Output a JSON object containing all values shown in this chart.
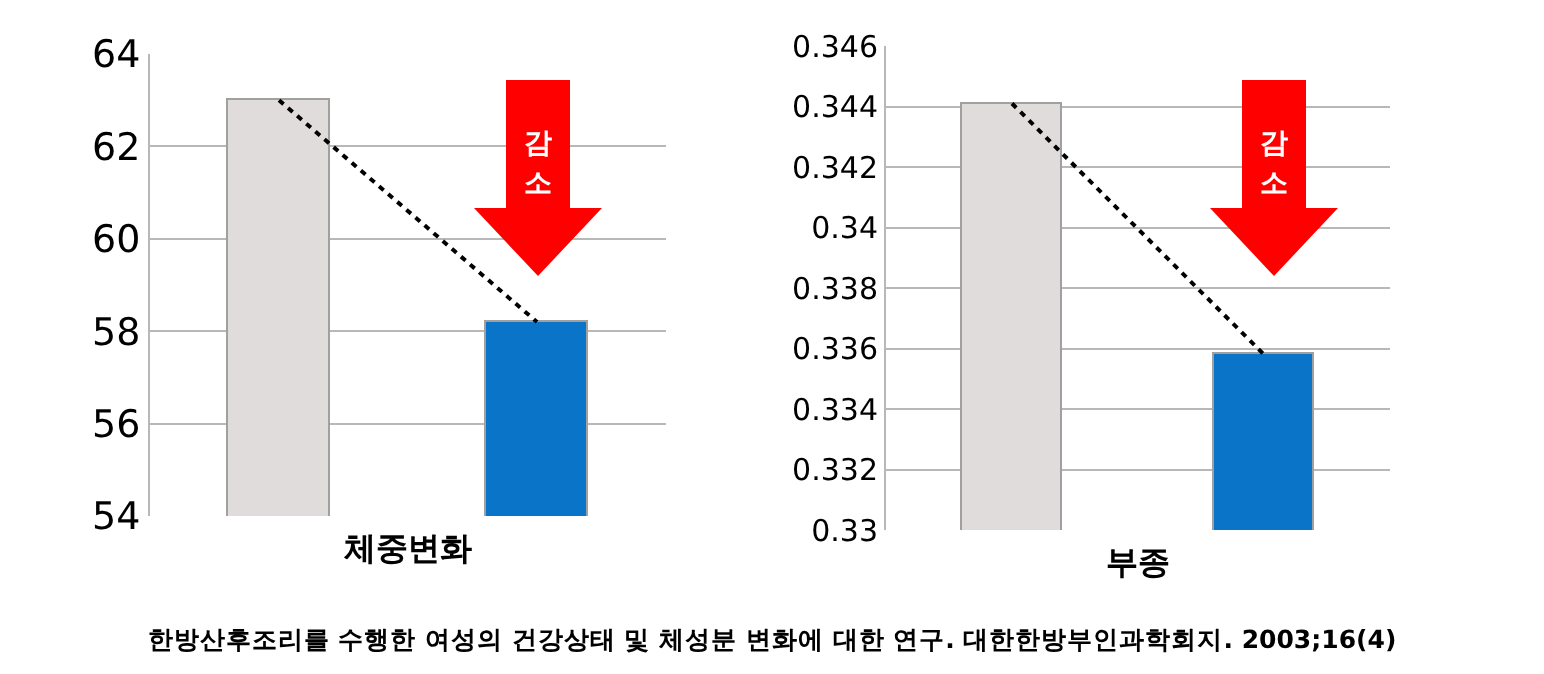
{
  "chart_data": [
    {
      "type": "bar",
      "xlabel": "체중변화",
      "categories": [
        null,
        null
      ],
      "series": [
        {
          "colors": [
            "#e0dcdc",
            "#0a74c8"
          ],
          "values": [
            63,
            58.2
          ]
        },
        {
          "type": "line",
          "color": "#000000",
          "line_style": "dotted",
          "values": [
            63,
            58.2
          ]
        }
      ],
      "ylim": [
        54,
        64
      ],
      "yticks": [
        54,
        56,
        58,
        60,
        62,
        64
      ],
      "grid": "y",
      "tick_labels": "y",
      "annotations": [
        "감소"
      ]
    },
    {
      "type": "bar",
      "xlabel": "부종",
      "categories": [
        null,
        null
      ],
      "series": [
        {
          "colors": [
            "#e0dcdc",
            "#0a74c8"
          ],
          "values": [
            0.3441,
            0.3358
          ]
        },
        {
          "type": "line",
          "color": "#000000",
          "line_style": "dotted",
          "values": [
            0.3441,
            0.3358
          ]
        }
      ],
      "ylim": [
        0.33,
        0.346
      ],
      "yticks": [
        0.33,
        0.332,
        0.334,
        0.336,
        0.338,
        0.34,
        0.342,
        0.344,
        0.346
      ],
      "grid": "y",
      "tick_labels": "y",
      "annotations": [
        "감소",
        "한방산후조리를 수행한 여성의 건강상태 및 체성분 변화에 대한 연구. 대한한방부인과학회지. 2003;16(4)"
      ]
    }
  ]
}
